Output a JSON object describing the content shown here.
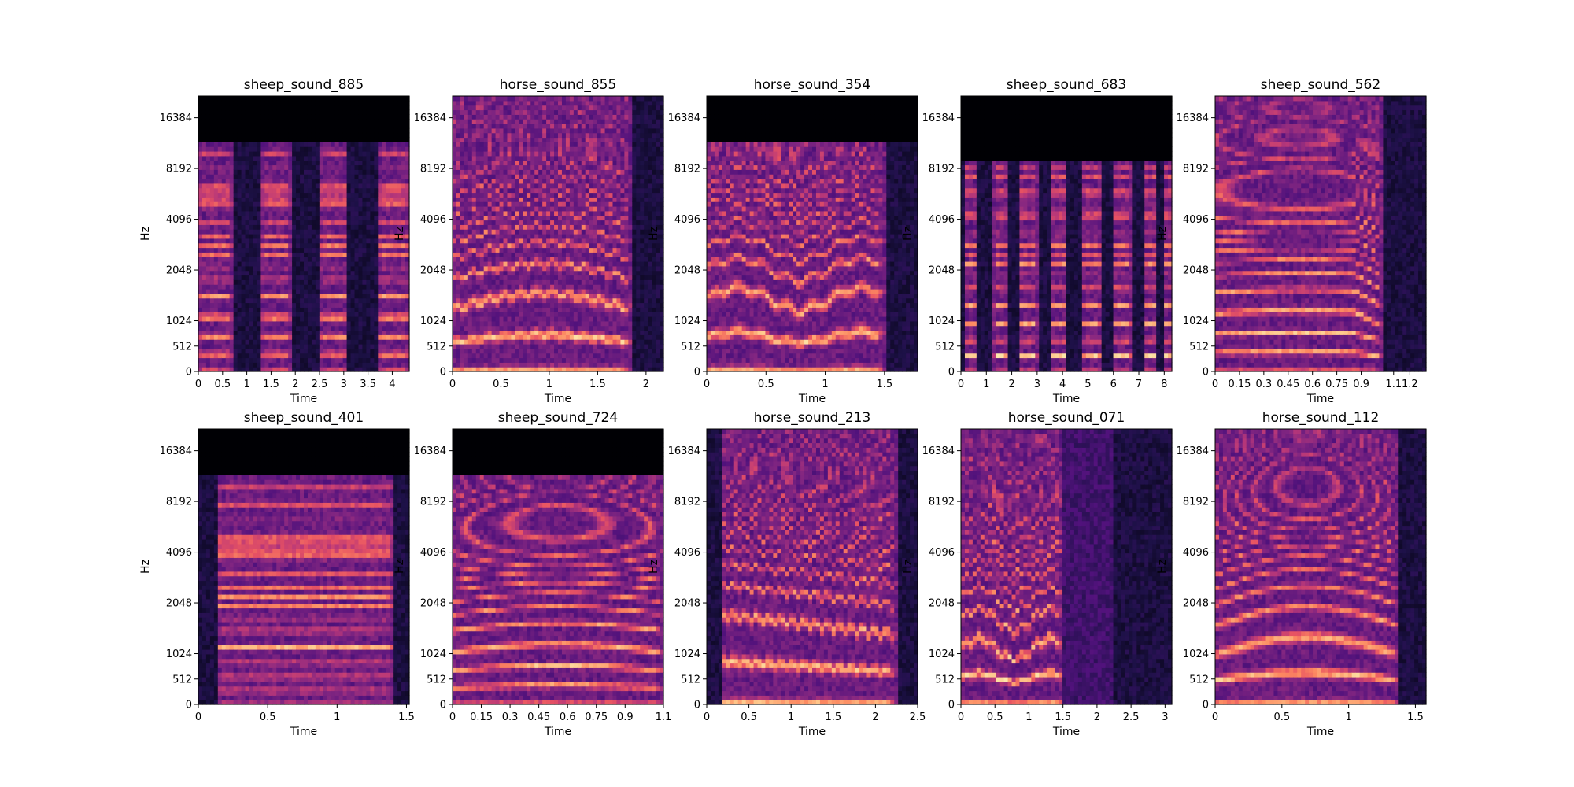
{
  "colormap": [
    "#000004",
    "#1d1147",
    "#51127c",
    "#822681",
    "#b73779",
    "#e75263",
    "#fc8961",
    "#fec287",
    "#fcfdbf"
  ],
  "chart_data": [
    {
      "type": "heatmap",
      "title": "sheep_sound_885",
      "xlabel": "Time",
      "ylabel": "Hz",
      "xlim": [
        0,
        4.35
      ],
      "x_ticks": [
        0,
        0.5,
        1,
        1.5,
        2,
        2.5,
        3,
        3.5,
        4
      ],
      "x_tick_labels": [
        "0",
        "0.5",
        "1",
        "1.5",
        "2",
        "2.5",
        "3",
        "3.5",
        "4"
      ],
      "y_ticks": [
        0,
        512,
        1024,
        2048,
        4096,
        8192,
        16384
      ],
      "y_tick_labels": [
        "0",
        "512",
        "1024",
        "2048",
        "4096",
        "8192",
        "16384"
      ],
      "pattern": "bursts",
      "cutoff_hz": 12000,
      "bursts": [
        [
          0,
          0.7
        ],
        [
          1.3,
          1.9
        ],
        [
          2.5,
          3.1
        ],
        [
          3.7,
          4.35
        ]
      ],
      "harmonic_f0_hz": 360,
      "harmonic_contour": "flat",
      "activity_end": 4.35
    },
    {
      "type": "heatmap",
      "title": "horse_sound_855",
      "xlabel": "Time",
      "ylabel": "Hz",
      "xlim": [
        0,
        2.18
      ],
      "x_ticks": [
        0,
        0.5,
        1,
        1.5,
        2
      ],
      "x_tick_labels": [
        "0",
        "0.5",
        "1",
        "1.5",
        "2"
      ],
      "y_ticks": [
        0,
        512,
        1024,
        2048,
        4096,
        8192,
        16384
      ],
      "y_tick_labels": [
        "0",
        "512",
        "1024",
        "2048",
        "4096",
        "8192",
        "16384"
      ],
      "pattern": "continuous",
      "cutoff_hz": 22050,
      "harmonic_f0_hz": 600,
      "harmonic_contour": "arch-vibrato",
      "activity_start": 0,
      "activity_end": 1.85
    },
    {
      "type": "heatmap",
      "title": "horse_sound_354",
      "xlabel": "Time",
      "ylabel": "Hz",
      "xlim": [
        0,
        1.78
      ],
      "x_ticks": [
        0,
        0.5,
        1,
        1.5
      ],
      "x_tick_labels": [
        "0",
        "0.5",
        "1",
        "1.5"
      ],
      "y_ticks": [
        0,
        512,
        1024,
        2048,
        4096,
        8192,
        16384
      ],
      "y_tick_labels": [
        "0",
        "512",
        "1024",
        "2048",
        "4096",
        "8192",
        "16384"
      ],
      "pattern": "continuous",
      "cutoff_hz": 12000,
      "harmonic_f0_hz": 700,
      "harmonic_contour": "noisy",
      "activity_start": 0,
      "activity_end": 1.5
    },
    {
      "type": "heatmap",
      "title": "sheep_sound_683",
      "xlabel": "Time",
      "ylabel": "Hz",
      "xlim": [
        0,
        8.3
      ],
      "x_ticks": [
        0,
        1,
        2,
        3,
        4,
        5,
        6,
        7,
        8
      ],
      "x_tick_labels": [
        "0",
        "1",
        "2",
        "3",
        "4",
        "5",
        "6",
        "7",
        "8"
      ],
      "y_ticks": [
        0,
        512,
        1024,
        2048,
        4096,
        8192,
        16384
      ],
      "y_tick_labels": [
        "0",
        "512",
        "1024",
        "2048",
        "4096",
        "8192",
        "16384"
      ],
      "pattern": "bursts",
      "cutoff_hz": 9000,
      "bursts": [
        [
          0.1,
          0.6
        ],
        [
          1.3,
          1.8
        ],
        [
          2.3,
          3.0
        ],
        [
          3.5,
          4.2
        ],
        [
          4.8,
          5.5
        ],
        [
          6.0,
          6.7
        ],
        [
          7.2,
          7.7
        ],
        [
          7.95,
          8.3
        ]
      ],
      "harmonic_f0_hz": 320,
      "harmonic_contour": "flat",
      "activity_end": 8.3
    },
    {
      "type": "heatmap",
      "title": "sheep_sound_562",
      "xlabel": "Time",
      "ylabel": "Hz",
      "xlim": [
        0,
        1.3
      ],
      "x_ticks": [
        0,
        0.15,
        0.3,
        0.45,
        0.6,
        0.75,
        0.9,
        1.1,
        1.2
      ],
      "x_tick_labels": [
        "0",
        "0.15",
        "0.3",
        "0.45",
        "0.6",
        "0.75",
        "0.9",
        "1.1",
        "1.2"
      ],
      "y_ticks": [
        0,
        512,
        1024,
        2048,
        4096,
        8192,
        16384
      ],
      "y_tick_labels": [
        "0",
        "512",
        "1024",
        "2048",
        "4096",
        "8192",
        "16384"
      ],
      "pattern": "continuous",
      "cutoff_hz": 22050,
      "harmonic_f0_hz": 380,
      "harmonic_contour": "flat-fall",
      "activity_start": 0,
      "activity_end": 1.03
    },
    {
      "type": "heatmap",
      "title": "sheep_sound_401",
      "xlabel": "Time",
      "ylabel": "Hz",
      "xlim": [
        0,
        1.52
      ],
      "x_ticks": [
        0,
        0.5,
        1,
        1.5
      ],
      "x_tick_labels": [
        "0",
        "0.5",
        "1",
        "1.5"
      ],
      "y_ticks": [
        0,
        512,
        1024,
        2048,
        4096,
        8192,
        16384
      ],
      "y_tick_labels": [
        "0",
        "512",
        "1024",
        "2048",
        "4096",
        "8192",
        "16384"
      ],
      "pattern": "continuous",
      "cutoff_hz": 12000,
      "harmonic_f0_hz": 280,
      "harmonic_contour": "flat",
      "activity_start": 0.15,
      "activity_end": 1.42
    },
    {
      "type": "heatmap",
      "title": "sheep_sound_724",
      "xlabel": "Time",
      "ylabel": "Hz",
      "xlim": [
        0,
        1.1
      ],
      "x_ticks": [
        0,
        0.15,
        0.3,
        0.45,
        0.6,
        0.75,
        0.9,
        1.1
      ],
      "x_tick_labels": [
        "0",
        "0.15",
        "0.3",
        "0.45",
        "0.6",
        "0.75",
        "0.9",
        "1.1"
      ],
      "y_ticks": [
        0,
        512,
        1024,
        2048,
        4096,
        8192,
        16384
      ],
      "y_tick_labels": [
        "0",
        "512",
        "1024",
        "2048",
        "4096",
        "8192",
        "16384"
      ],
      "pattern": "continuous",
      "cutoff_hz": 12000,
      "harmonic_f0_hz": 350,
      "harmonic_contour": "slight-arch",
      "activity_start": 0,
      "activity_end": 1.1
    },
    {
      "type": "heatmap",
      "title": "horse_sound_213",
      "xlabel": "Time",
      "ylabel": "Hz",
      "xlim": [
        0,
        2.5
      ],
      "x_ticks": [
        0,
        0.5,
        1,
        1.5,
        2,
        2.5
      ],
      "x_tick_labels": [
        "0",
        "0.5",
        "1",
        "1.5",
        "2",
        "2.5"
      ],
      "y_ticks": [
        0,
        512,
        1024,
        2048,
        4096,
        8192,
        16384
      ],
      "y_tick_labels": [
        "0",
        "512",
        "1024",
        "2048",
        "4096",
        "8192",
        "16384"
      ],
      "pattern": "continuous",
      "cutoff_hz": 22050,
      "harmonic_f0_hz": 700,
      "harmonic_contour": "wavy-fall",
      "activity_start": 0.2,
      "activity_end": 2.25
    },
    {
      "type": "heatmap",
      "title": "horse_sound_071",
      "xlabel": "Time",
      "ylabel": "Hz",
      "xlim": [
        0,
        3.1
      ],
      "x_ticks": [
        0,
        0.5,
        1,
        1.5,
        2,
        2.5,
        3
      ],
      "x_tick_labels": [
        "0",
        "0.5",
        "1",
        "1.5",
        "2",
        "2.5",
        "3"
      ],
      "y_ticks": [
        0,
        512,
        1024,
        2048,
        4096,
        8192,
        16384
      ],
      "y_tick_labels": [
        "0",
        "512",
        "1024",
        "2048",
        "4096",
        "8192",
        "16384"
      ],
      "pattern": "continuous",
      "cutoff_hz": 22050,
      "harmonic_f0_hz": 550,
      "harmonic_contour": "noisy",
      "activity_start": 0,
      "activity_end": 1.5,
      "tail_end": 2.25
    },
    {
      "type": "heatmap",
      "title": "horse_sound_112",
      "xlabel": "Time",
      "ylabel": "Hz",
      "xlim": [
        0,
        1.58
      ],
      "x_ticks": [
        0,
        0.5,
        1,
        1.5
      ],
      "x_tick_labels": [
        "0",
        "0.5",
        "1",
        "1.5"
      ],
      "y_ticks": [
        0,
        512,
        1024,
        2048,
        4096,
        8192,
        16384
      ],
      "y_tick_labels": [
        "0",
        "512",
        "1024",
        "2048",
        "4096",
        "8192",
        "16384"
      ],
      "pattern": "continuous",
      "cutoff_hz": 22050,
      "harmonic_f0_hz": 500,
      "harmonic_contour": "arch",
      "activity_start": 0,
      "activity_end": 1.38
    }
  ]
}
